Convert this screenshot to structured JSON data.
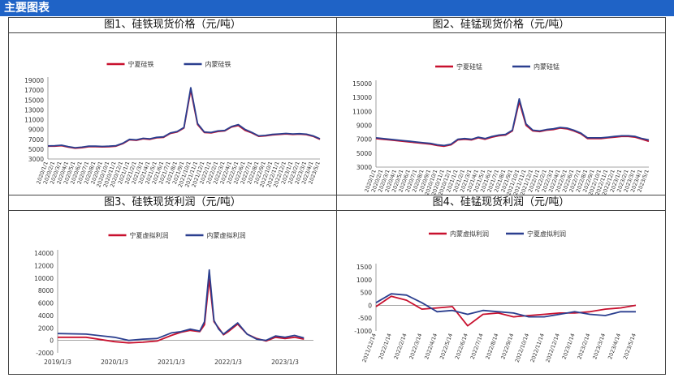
{
  "header": {
    "title": "主要图表"
  },
  "panels": [
    {
      "title": "图1、硅铁现货价格（元/吨）"
    },
    {
      "title": "图2、硅锰现货价格（元/吨）"
    },
    {
      "title": "图3、硅铁现货利润（元/吨）"
    },
    {
      "title": "图4、硅锰现货利润（元/吨）"
    }
  ],
  "chart_data": [
    {
      "type": "line",
      "title": "图1、硅铁现货价格（元/吨）",
      "ylim": [
        3000,
        19000
      ],
      "yticks": [
        3000,
        5000,
        7000,
        9000,
        11000,
        13000,
        15000,
        17000,
        19000
      ],
      "x": [
        "2020/1/1",
        "2020/2/1",
        "2020/3/1",
        "2020/4/1",
        "2020/5/1",
        "2020/6/1",
        "2020/7/1",
        "2020/8/1",
        "2020/9/1",
        "2020/10/1",
        "2020/11/1",
        "2020/12/1",
        "2021/1/1",
        "2021/2/1",
        "2021/3/1",
        "2021/4/1",
        "2021/5/1",
        "2021/6/1",
        "2021/7/1",
        "2021/8/1",
        "2021/9/1",
        "2021/10/1",
        "2021/11/1",
        "2021/12/1",
        "2022/1/1",
        "2022/2/1",
        "2022/3/1",
        "2022/4/1",
        "2022/5/1",
        "2022/6/1",
        "2022/7/1",
        "2022/8/1",
        "2022/9/1",
        "2022/10/1",
        "2022/11/1",
        "2022/12/1",
        "2023/1/1",
        "2023/2/1",
        "2023/3/1",
        "2023/4/1",
        "2023/5/1"
      ],
      "series": [
        {
          "name": "宁夏硅铁",
          "color": "#c8102e",
          "values": [
            5600,
            5600,
            5700,
            5400,
            5200,
            5300,
            5500,
            5500,
            5450,
            5500,
            5600,
            6100,
            6900,
            6800,
            7100,
            7000,
            7300,
            7400,
            8200,
            8500,
            9300,
            17000,
            10000,
            8400,
            8300,
            8600,
            8700,
            9500,
            9800,
            8800,
            8300,
            7600,
            7700,
            7900,
            8000,
            8100,
            8000,
            8050,
            7950,
            7600,
            7000
          ]
        },
        {
          "name": "内蒙硅铁",
          "color": "#2b3f8f",
          "values": [
            5650,
            5700,
            5800,
            5500,
            5300,
            5400,
            5600,
            5600,
            5550,
            5600,
            5700,
            6200,
            7000,
            6900,
            7200,
            7100,
            7400,
            7500,
            8300,
            8600,
            9400,
            17500,
            10200,
            8500,
            8400,
            8700,
            8800,
            9600,
            10000,
            9000,
            8400,
            7700,
            7800,
            8000,
            8100,
            8200,
            8100,
            8150,
            8050,
            7700,
            7100
          ]
        }
      ],
      "legend": "top-center"
    },
    {
      "type": "line",
      "title": "图2、硅锰现货价格（元/吨）",
      "ylim": [
        3000,
        15000
      ],
      "yticks": [
        3000,
        5000,
        7000,
        9000,
        11000,
        13000,
        15000
      ],
      "x": [
        "2020/1/1",
        "2020/2/1",
        "2020/3/1",
        "2020/4/1",
        "2020/5/1",
        "2020/6/1",
        "2020/7/1",
        "2020/8/1",
        "2020/9/1",
        "2020/10/1",
        "2020/11/1",
        "2020/12/1",
        "2021/1/1",
        "2021/2/1",
        "2021/3/1",
        "2021/4/1",
        "2021/5/1",
        "2021/6/1",
        "2021/7/1",
        "2021/8/1",
        "2021/9/1",
        "2021/10/1",
        "2021/11/1",
        "2021/12/1",
        "2022/1/1",
        "2022/2/1",
        "2022/3/1",
        "2022/4/1",
        "2022/5/1",
        "2022/6/1",
        "2022/7/1",
        "2022/8/1",
        "2022/9/1",
        "2022/10/1",
        "2022/11/1",
        "2022/12/1",
        "2023/1/1",
        "2023/2/1",
        "2023/3/1",
        "2023/4/1",
        "2023/5/1"
      ],
      "series": [
        {
          "name": "宁夏硅锰",
          "color": "#c8102e",
          "values": [
            7100,
            7000,
            6900,
            6800,
            6700,
            6600,
            6500,
            6400,
            6300,
            6100,
            6000,
            6200,
            6900,
            7000,
            6900,
            7200,
            7000,
            7300,
            7500,
            7600,
            8200,
            12400,
            9000,
            8200,
            8100,
            8300,
            8400,
            8600,
            8500,
            8200,
            7800,
            7100,
            7100,
            7100,
            7200,
            7300,
            7400,
            7400,
            7300,
            7000,
            6700
          ]
        },
        {
          "name": "内蒙硅锰",
          "color": "#2b3f8f",
          "values": [
            7200,
            7100,
            7000,
            6900,
            6800,
            6700,
            6600,
            6500,
            6400,
            6200,
            6100,
            6300,
            7000,
            7100,
            7000,
            7300,
            7100,
            7400,
            7600,
            7700,
            8300,
            12800,
            9200,
            8300,
            8200,
            8400,
            8500,
            8700,
            8600,
            8300,
            7900,
            7200,
            7200,
            7200,
            7300,
            7400,
            7500,
            7500,
            7400,
            7100,
            6900
          ]
        }
      ],
      "legend": "top-center"
    },
    {
      "type": "line",
      "title": "图3、硅铁现货利润（元/吨）",
      "ylim": [
        -2000,
        14000
      ],
      "yticks": [
        -2000,
        0,
        2000,
        4000,
        6000,
        8000,
        10000,
        12000,
        14000
      ],
      "xticks": [
        "2019/1/3",
        "2020/1/3",
        "2021/1/3",
        "2022/1/3",
        "2023/1/3"
      ],
      "x_date": [
        "2019/1/3",
        "2019/7/3",
        "2020/1/3",
        "2020/4/3",
        "2020/7/3",
        "2020/10/3",
        "2021/1/3",
        "2021/3/3",
        "2021/5/3",
        "2021/7/3",
        "2021/8/3",
        "2021/9/3",
        "2021/10/3",
        "2021/11/3",
        "2021/12/3",
        "2022/1/3",
        "2022/3/3",
        "2022/5/3",
        "2022/7/3",
        "2022/9/3",
        "2022/11/3",
        "2023/1/3",
        "2023/3/3",
        "2023/5/3"
      ],
      "series": [
        {
          "name": "宁夏虚拟利润",
          "color": "#c8102e",
          "values": [
            500,
            500,
            -200,
            -400,
            -300,
            -100,
            800,
            1300,
            1600,
            1400,
            2500,
            9800,
            3000,
            2000,
            900,
            1400,
            2600,
            1000,
            300,
            -100,
            500,
            300,
            500,
            200
          ]
        },
        {
          "name": "内蒙虚拟利润",
          "color": "#2b3f8f",
          "values": [
            1100,
            1000,
            500,
            0,
            200,
            300,
            1200,
            1400,
            1800,
            1500,
            3000,
            11300,
            3200,
            1800,
            1000,
            1600,
            2800,
            1000,
            200,
            0,
            700,
            500,
            800,
            400
          ]
        }
      ],
      "legend": "top-center"
    },
    {
      "type": "line",
      "title": "图4、硅锰现货利润（元/吨）",
      "ylim": [
        -1000,
        1500
      ],
      "yticks": [
        -1000,
        -500,
        0,
        500,
        1000,
        1500
      ],
      "x": [
        "2021/12/14",
        "2022/1/14",
        "2022/2/14",
        "2022/3/14",
        "2022/4/14",
        "2022/5/14",
        "2022/6/14",
        "2022/7/14",
        "2022/8/14",
        "2022/9/14",
        "2022/10/14",
        "2022/11/14",
        "2022/12/14",
        "2023/1/14",
        "2023/2/14",
        "2023/3/14",
        "2023/4/14",
        "2023/5/14"
      ],
      "series": [
        {
          "name": "内蒙虚拟利润",
          "color": "#c8102e",
          "values": [
            -50,
            350,
            200,
            -150,
            -100,
            -50,
            -800,
            -350,
            -300,
            -450,
            -400,
            -350,
            -300,
            -300,
            -250,
            -150,
            -100,
            0
          ]
        },
        {
          "name": "宁夏虚拟利润",
          "color": "#2b3f8f",
          "values": [
            100,
            450,
            400,
            100,
            -250,
            -200,
            -350,
            -200,
            -250,
            -300,
            -450,
            -450,
            -350,
            -250,
            -350,
            -400,
            -250,
            -250
          ]
        }
      ],
      "legend": "top-center"
    }
  ]
}
